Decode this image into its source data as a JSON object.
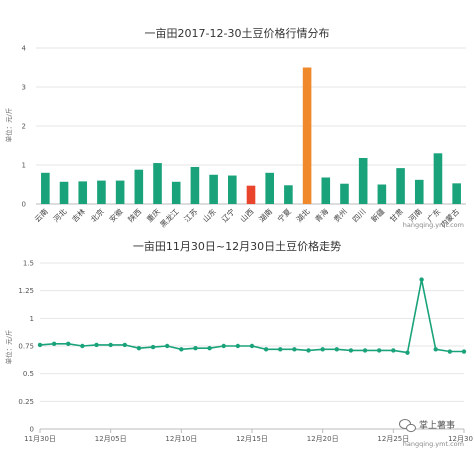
{
  "chart_data": [
    {
      "type": "bar",
      "title": "一亩田2017-12-30土豆价格行情分布",
      "ylabel": "单位：元/斤",
      "ylim": [
        0,
        4
      ],
      "yticks": [
        "0",
        "1",
        "2",
        "3",
        "4"
      ],
      "grid": true,
      "categories": [
        "云南",
        "河北",
        "吉林",
        "北京",
        "安徽",
        "陕西",
        "重庆",
        "黑龙江",
        "江苏",
        "山东",
        "辽宁",
        "山西",
        "湖南",
        "宁夏",
        "湖北",
        "青海",
        "贵州",
        "四川",
        "新疆",
        "甘肃",
        "河南",
        "广东",
        "内蒙古"
      ],
      "values": [
        0.8,
        0.57,
        0.58,
        0.6,
        0.6,
        0.88,
        1.05,
        0.57,
        0.95,
        0.75,
        0.73,
        0.47,
        0.8,
        0.48,
        3.5,
        0.68,
        0.52,
        1.18,
        0.5,
        0.92,
        0.62,
        1.3,
        0.53
      ],
      "colors": [
        "#1aa37a",
        "#1aa37a",
        "#1aa37a",
        "#1aa37a",
        "#1aa37a",
        "#1aa37a",
        "#1aa37a",
        "#1aa37a",
        "#1aa37a",
        "#1aa37a",
        "#1aa37a",
        "#e8452c",
        "#1aa37a",
        "#1aa37a",
        "#f0892b",
        "#1aa37a",
        "#1aa37a",
        "#1aa37a",
        "#1aa37a",
        "#1aa37a",
        "#1aa37a",
        "#1aa37a",
        "#1aa37a"
      ],
      "watermark": "hangqing.ymt.com"
    },
    {
      "type": "line",
      "title": "一亩田11月30日~12月30日土豆价格走势",
      "ylabel": "单位：元/斤",
      "ylim": [
        0,
        1.5
      ],
      "yticks": [
        "0",
        "0.25",
        "0.5",
        "0.75",
        "1",
        "1.25",
        "1.5"
      ],
      "grid": true,
      "x": [
        "11月30日",
        "12月01日",
        "12月02日",
        "12月03日",
        "12月04日",
        "12月05日",
        "12月06日",
        "12月07日",
        "12月08日",
        "12月09日",
        "12月10日",
        "12月11日",
        "12月12日",
        "12月13日",
        "12月14日",
        "12月15日",
        "12月16日",
        "12月17日",
        "12月18日",
        "12月19日",
        "12月20日",
        "12月21日",
        "12月22日",
        "12月23日",
        "12月24日",
        "12月25日",
        "12月26日",
        "12月27日",
        "12月28日",
        "12月29日",
        "12月30日"
      ],
      "xtick_labels": [
        "11月30日",
        "12月05日",
        "12月10日",
        "12月15日",
        "12月20日",
        "12月25日",
        "12月30日"
      ],
      "values": [
        0.76,
        0.77,
        0.77,
        0.75,
        0.76,
        0.76,
        0.76,
        0.73,
        0.74,
        0.75,
        0.72,
        0.73,
        0.73,
        0.75,
        0.75,
        0.75,
        0.72,
        0.72,
        0.72,
        0.71,
        0.72,
        0.72,
        0.71,
        0.71,
        0.71,
        0.71,
        0.69,
        1.35,
        0.72,
        0.7,
        0.7
      ],
      "color": "#1aa37a",
      "watermark": "hangqing.ymt.com"
    }
  ],
  "brand": {
    "text": "掌上薯事",
    "icon": "wechat-icon"
  }
}
